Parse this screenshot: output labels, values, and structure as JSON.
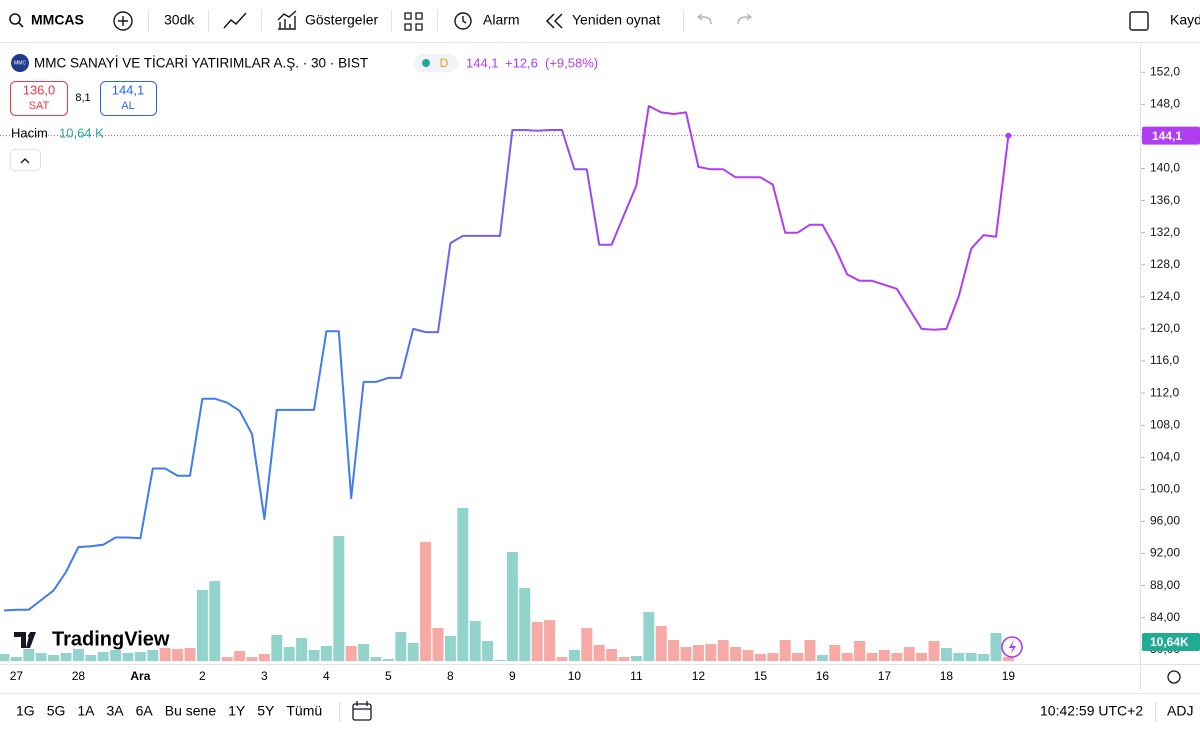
{
  "toolbar": {
    "symbol": "MMCAS",
    "interval": "30dk",
    "indicators": "Göstergeler",
    "alert": "Alarm",
    "replay": "Yeniden oynat",
    "save": "Kayd"
  },
  "legend": {
    "logo": "MMC",
    "title": "MMC SANAYİ VE TİCARİ YATIRIMLAR A.Ş. · 30 · BIST",
    "status": "D",
    "last": "144,1",
    "change": "+12,6",
    "change_pct": "(+9,58%)",
    "sell_price": "136,0",
    "sell": "SAT",
    "spread": "8,1",
    "buy_price": "144,1",
    "buy": "AL",
    "volume_label": "Hacim",
    "volume_value": "10,64 K"
  },
  "branding": "TradingView",
  "chart_data": {
    "type": "line",
    "categories": [
      null,
      "27",
      null,
      null,
      null,
      null,
      "28",
      null,
      null,
      null,
      null,
      "Ara",
      null,
      null,
      null,
      null,
      "2",
      null,
      null,
      null,
      null,
      "3",
      null,
      null,
      null,
      null,
      "4",
      null,
      null,
      null,
      null,
      "5",
      null,
      null,
      null,
      null,
      "8",
      null,
      null,
      null,
      null,
      "9",
      null,
      null,
      null,
      null,
      "10",
      null,
      null,
      null,
      null,
      "11",
      null,
      null,
      null,
      null,
      "12",
      null,
      null,
      null,
      null,
      "15",
      null,
      null,
      null,
      null,
      "16",
      null,
      null,
      null,
      null,
      "17",
      null,
      null,
      null,
      null,
      "18",
      null,
      null,
      null,
      null,
      "19"
    ],
    "values": [
      84.9,
      85,
      85,
      86.2,
      87.4,
      89.7,
      92.8,
      92.9,
      93.1,
      94,
      94,
      93.9,
      102.6,
      102.6,
      101.7,
      101.7,
      111.3,
      111.3,
      110.8,
      109.8,
      106.9,
      96.3,
      109.9,
      109.9,
      109.9,
      109.9,
      119.7,
      119.7,
      98.9,
      113.4,
      113.4,
      113.9,
      113.9,
      120,
      119.6,
      119.6,
      130.7,
      131.6,
      131.6,
      131.6,
      131.6,
      144.8,
      144.8,
      144.7,
      144.8,
      144.8,
      139.9,
      139.9,
      130.5,
      130.5,
      134.2,
      137.9,
      147.8,
      147,
      146.8,
      147,
      140.2,
      139.9,
      139.9,
      138.9,
      138.9,
      138.9,
      138,
      132,
      132,
      133,
      133,
      130.2,
      126.8,
      126,
      126,
      125.5,
      125,
      122.5,
      120,
      119.9,
      120,
      124.1,
      130,
      131.7,
      131.5,
      144.1
    ],
    "volume": [
      18.6,
      10.6,
      31.9,
      21.3,
      16,
      21.3,
      31.9,
      16,
      23.9,
      29.3,
      21.3,
      23.9,
      29.3,
      34.6,
      31.9,
      34.6,
      188.9,
      212.8,
      10.6,
      26.6,
      10.6,
      18.6,
      69.2,
      37.2,
      61.2,
      29.3,
      39.9,
      332.5,
      39.9,
      45.2,
      10.6,
      5.3,
      77.1,
      47.9,
      316.5,
      87.8,
      66.5,
      407,
      106.4,
      53.2,
      2.7,
      289.9,
      194.2,
      103.7,
      109.1,
      10.6,
      29.3,
      87.8,
      42.6,
      31.9,
      10.6,
      13.3,
      130.3,
      93.1,
      55.9,
      37.2,
      42.6,
      45.2,
      55.9,
      37.2,
      29.3,
      18.6,
      21.3,
      55.9,
      21.3,
      55.9,
      16,
      42.6,
      21.3,
      53.2,
      21.3,
      29.3,
      21.3,
      37.2,
      21.3,
      53.2,
      34.6,
      21.3,
      21.3,
      18.6,
      74.5,
      10.64
    ],
    "volume_direction": [
      "up",
      "up",
      "up",
      "up",
      "up",
      "up",
      "up",
      "up",
      "up",
      "up",
      "up",
      "up",
      "up",
      "down",
      "down",
      "down",
      "up",
      "up",
      "down",
      "down",
      "down",
      "down",
      "up",
      "up",
      "up",
      "up",
      "up",
      "up",
      "down",
      "up",
      "up",
      "up",
      "up",
      "up",
      "down",
      "down",
      "up",
      "up",
      "up",
      "up",
      "up",
      "up",
      "up",
      "down",
      "down",
      "down",
      "up",
      "down",
      "down",
      "down",
      "down",
      "up",
      "up",
      "down",
      "down",
      "down",
      "down",
      "down",
      "down",
      "down",
      "down",
      "down",
      "down",
      "down",
      "down",
      "down",
      "up",
      "down",
      "down",
      "down",
      "down",
      "down",
      "down",
      "down",
      "down",
      "down",
      "up",
      "up",
      "up",
      "up",
      "up",
      "down"
    ],
    "up_color": "#92d3cb",
    "down_color": "#f6a9a5",
    "line_colors": [
      "#3f7cf0",
      "#b13df3"
    ],
    "ylim": [
      78.6,
      155.4
    ],
    "yticks": [
      {
        "value": 152,
        "label": "152,0"
      },
      {
        "value": 148,
        "label": "148,0"
      },
      {
        "value": 144,
        "label": "144,0"
      },
      {
        "value": 140,
        "label": "140,0"
      },
      {
        "value": 136,
        "label": "136,0"
      },
      {
        "value": 132,
        "label": "132,0"
      },
      {
        "value": 128,
        "label": "128,0"
      },
      {
        "value": 124,
        "label": "124,0"
      },
      {
        "value": 120,
        "label": "120,0"
      },
      {
        "value": 116,
        "label": "116,0"
      },
      {
        "value": 112,
        "label": "112,0"
      },
      {
        "value": 108,
        "label": "108,0"
      },
      {
        "value": 104,
        "label": "104,0"
      },
      {
        "value": 100,
        "label": "100,0"
      },
      {
        "value": 96,
        "label": "96,00"
      },
      {
        "value": 92,
        "label": "92,00"
      },
      {
        "value": 88,
        "label": "88,00"
      },
      {
        "value": 84,
        "label": "84,00"
      },
      {
        "value": 80,
        "label": "80,00"
      }
    ],
    "price_line": {
      "value": 144.1,
      "label": "144,1"
    },
    "volume_badge": "10,64K"
  },
  "footer": {
    "ranges": [
      "1G",
      "5G",
      "1A",
      "3A",
      "6A",
      "Bu sene",
      "1Y",
      "5Y",
      "Tümü"
    ],
    "time": "10:42:59 UTC+2",
    "adj": "ADJ"
  }
}
